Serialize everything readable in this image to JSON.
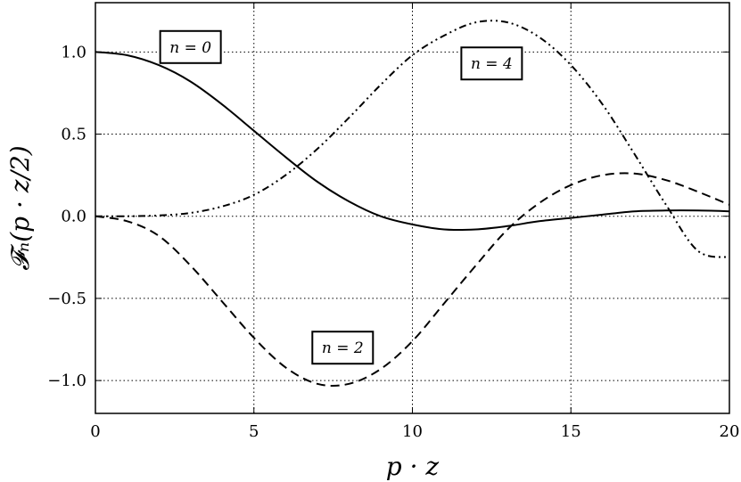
{
  "chart_data": {
    "type": "line",
    "xlabel": "p · z",
    "ylabel": "𝓕ₙ(p · z/2)",
    "xlim": [
      0,
      20
    ],
    "ylim": [
      -1.2,
      1.3
    ],
    "xticks": [
      0,
      5,
      10,
      15,
      20
    ],
    "xtick_labels": [
      "0",
      "5",
      "10",
      "15",
      "20"
    ],
    "yticks": [
      1.0,
      0.5,
      0.0,
      -0.5,
      -1.0
    ],
    "ytick_labels": [
      "1.0",
      "0.5",
      "0.0",
      "−0.5",
      "−1.0"
    ],
    "grid": true,
    "series": [
      {
        "line_style": "solid",
        "x": [
          0,
          1,
          2,
          3,
          4,
          5,
          6,
          7,
          8,
          9,
          10,
          11,
          12,
          13,
          14,
          15,
          16,
          17,
          18,
          19,
          20
        ],
        "values": [
          1.0,
          0.98,
          0.92,
          0.82,
          0.68,
          0.52,
          0.36,
          0.21,
          0.09,
          0.0,
          -0.05,
          -0.08,
          -0.08,
          -0.06,
          -0.03,
          -0.01,
          0.01,
          0.03,
          0.035,
          0.035,
          0.03
        ]
      },
      {
        "line_style": "dashed",
        "x": [
          0,
          1,
          2,
          3,
          4,
          5,
          6,
          7,
          8,
          9,
          10,
          11,
          12,
          13,
          14,
          15,
          16,
          17,
          18,
          19,
          20
        ],
        "values": [
          0.0,
          -0.03,
          -0.12,
          -0.3,
          -0.52,
          -0.74,
          -0.92,
          -1.02,
          -1.02,
          -0.93,
          -0.76,
          -0.53,
          -0.3,
          -0.08,
          0.08,
          0.19,
          0.25,
          0.26,
          0.22,
          0.15,
          0.07
        ]
      },
      {
        "line_style": "dashdot",
        "x": [
          0,
          1,
          2,
          3,
          4,
          5,
          6,
          7,
          8,
          9,
          10,
          11,
          12,
          13,
          14,
          15,
          16,
          17,
          18,
          19,
          20
        ],
        "values": [
          0.0,
          0.0,
          0.005,
          0.02,
          0.06,
          0.13,
          0.25,
          0.41,
          0.6,
          0.8,
          0.98,
          1.1,
          1.18,
          1.18,
          1.09,
          0.92,
          0.68,
          0.38,
          0.07,
          -0.21,
          -0.25
        ]
      }
    ],
    "annotations": [
      {
        "text": "n = 0",
        "x": 3,
        "y": 1.03
      },
      {
        "text": "n = 4",
        "x": 12.5,
        "y": 0.93
      },
      {
        "text": "n = 2",
        "x": 7.8,
        "y": -0.8
      }
    ]
  }
}
